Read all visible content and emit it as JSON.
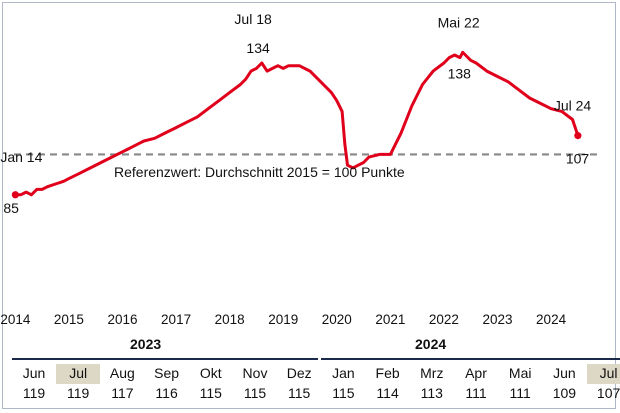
{
  "chart_data": {
    "type": "line",
    "color": "#e0001b",
    "reference_line": {
      "y": 100,
      "color": "#888888",
      "style": "dashed"
    },
    "x_ticks": [
      "2014",
      "2015",
      "2016",
      "2017",
      "2018",
      "2019",
      "2020",
      "2021",
      "2022",
      "2023",
      "2024"
    ],
    "xlim": [
      2013.9,
      2025.1
    ],
    "ylim": [
      60,
      150
    ],
    "note": "Referenzwert: Durchschnitt 2015 = 100 Punkte",
    "annotations": [
      {
        "label": "Jan 14",
        "value": "85",
        "x": 2014.0,
        "y": 85
      },
      {
        "label": "Jul 18",
        "value": "134",
        "x": 2018.5,
        "y": 134
      },
      {
        "label": "Mai 22",
        "value": "138",
        "x": 2022.33,
        "y": 138
      },
      {
        "label": "Jul 24",
        "value": "107",
        "x": 2024.5,
        "y": 107
      }
    ],
    "series": [
      {
        "x": [
          2014.0,
          2014.1,
          2014.2,
          2014.3,
          2014.4,
          2014.5,
          2014.6,
          2014.75,
          2014.9,
          2015.0,
          2015.2,
          2015.4,
          2015.6,
          2015.8,
          2016.0,
          2016.1,
          2016.2,
          2016.3,
          2016.4,
          2016.6,
          2016.8,
          2017.0,
          2017.2,
          2017.4,
          2017.6,
          2017.8,
          2018.0,
          2018.2,
          2018.3,
          2018.4,
          2018.5,
          2018.6,
          2018.7,
          2018.8,
          2018.9,
          2019.0,
          2019.1,
          2019.3,
          2019.5,
          2019.7,
          2019.9,
          2020.0,
          2020.1,
          2020.15,
          2020.2,
          2020.3,
          2020.4,
          2020.5,
          2020.6,
          2020.8,
          2021.0,
          2021.2,
          2021.4,
          2021.6,
          2021.8,
          2022.0,
          2022.1,
          2022.2,
          2022.3,
          2022.35,
          2022.4,
          2022.5,
          2022.6,
          2022.8,
          2023.0,
          2023.2,
          2023.4,
          2023.6,
          2023.8,
          2024.0,
          2024.2,
          2024.4,
          2024.5
        ],
        "y": [
          85,
          85,
          86,
          85,
          87,
          87,
          88,
          89,
          90,
          91,
          93,
          95,
          97,
          99,
          101,
          102,
          103,
          104,
          105,
          106,
          108,
          110,
          112,
          114,
          117,
          120,
          123,
          126,
          128,
          131,
          132,
          134,
          131,
          132,
          133,
          132,
          133,
          133,
          131,
          127,
          123,
          120,
          116,
          104,
          96,
          95,
          96,
          97,
          99,
          100,
          100,
          108,
          118,
          126,
          131,
          134,
          136,
          137,
          136,
          138,
          137,
          135,
          134,
          131,
          129,
          127,
          124,
          121,
          119,
          117,
          116,
          113,
          107
        ]
      }
    ]
  },
  "table": {
    "years": [
      {
        "label": "2023",
        "x": 130
      },
      {
        "label": "2024",
        "x": 415
      }
    ],
    "columns": [
      {
        "month": "Jun",
        "value": "119",
        "highlight": false
      },
      {
        "month": "Jul",
        "value": "119",
        "highlight": true
      },
      {
        "month": "Aug",
        "value": "117",
        "highlight": false
      },
      {
        "month": "Sep",
        "value": "116",
        "highlight": false
      },
      {
        "month": "Okt",
        "value": "115",
        "highlight": false
      },
      {
        "month": "Nov",
        "value": "115",
        "highlight": false
      },
      {
        "month": "Dez",
        "value": "115",
        "highlight": false
      },
      {
        "month": "Jan",
        "value": "115",
        "highlight": false
      },
      {
        "month": "Feb",
        "value": "114",
        "highlight": false
      },
      {
        "month": "Mrz",
        "value": "113",
        "highlight": false
      },
      {
        "month": "Apr",
        "value": "111",
        "highlight": false
      },
      {
        "month": "Mai",
        "value": "111",
        "highlight": false
      },
      {
        "month": "Jun",
        "value": "109",
        "highlight": false
      },
      {
        "month": "Jul",
        "value": "107",
        "highlight": true
      }
    ]
  }
}
